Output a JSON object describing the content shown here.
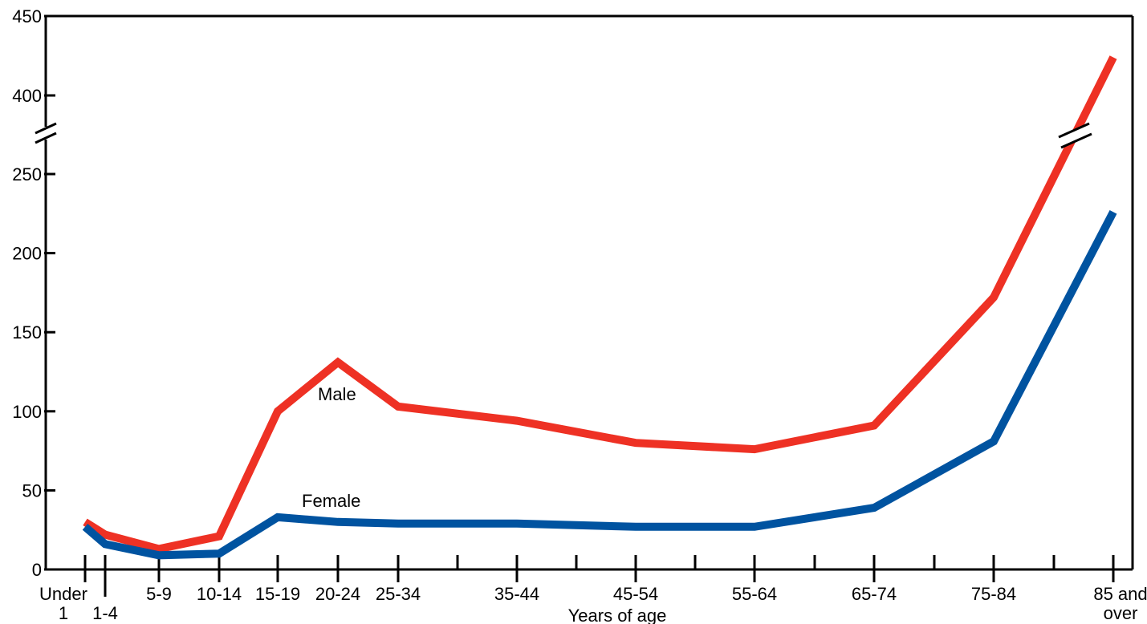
{
  "chart_data": {
    "type": "line",
    "title": "",
    "xlabel": "Years of age",
    "ylabel": "",
    "axis_break": {
      "from": 270,
      "to": 380
    },
    "ylim": [
      0,
      450
    ],
    "y_ticks": [
      "0",
      "50",
      "100",
      "150",
      "200",
      "250",
      "400",
      "450"
    ],
    "x_tick_labels": [
      {
        "lines": [
          "Under",
          "1"
        ]
      },
      {
        "lines": [
          "",
          "1-4"
        ]
      },
      {
        "lines": [
          "5-9"
        ]
      },
      {
        "lines": [
          "10-14"
        ]
      },
      {
        "lines": [
          "15-19"
        ]
      },
      {
        "lines": [
          "20-24"
        ]
      },
      {
        "lines": [
          "25-34"
        ]
      },
      {
        "lines": [
          "35-44"
        ]
      },
      {
        "lines": [
          "45-54"
        ]
      },
      {
        "lines": [
          "55-64"
        ]
      },
      {
        "lines": [
          "65-74"
        ]
      },
      {
        "lines": [
          "75-84"
        ]
      },
      {
        "lines": [
          "85 and",
          "over"
        ]
      }
    ],
    "categories": [
      "Under 1",
      "1-4",
      "5-9",
      "10-14",
      "15-19",
      "20-24",
      "25-34",
      "35-44",
      "45-54",
      "55-64",
      "65-74",
      "75-84",
      "85 and over"
    ],
    "series": [
      {
        "name": "Male",
        "color": "#ee3124",
        "values": [
          30,
          22,
          13,
          21,
          100,
          131,
          103,
          94,
          80,
          76,
          91,
          172,
          424
        ]
      },
      {
        "name": "Female",
        "color": "#0053a0",
        "values": [
          27,
          16,
          9,
          10,
          33,
          30,
          29,
          29,
          27,
          27,
          39,
          81,
          226
        ]
      }
    ]
  }
}
